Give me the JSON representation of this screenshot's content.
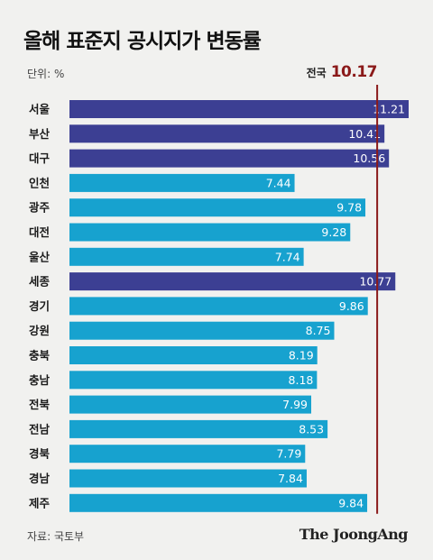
{
  "title": "올해 표준지 공시지가 변동률",
  "unit_label": "단위: %",
  "source": "자료: 국토부",
  "brand": "The JoongAng",
  "colors": {
    "highlight_bar": "#3c3f93",
    "normal_bar": "#17a2cf",
    "reference_line": "#8b1a1a",
    "background": "#f1f1ef"
  },
  "chart_data": {
    "type": "bar",
    "orientation": "horizontal",
    "title": "올해 표준지 공시지가 변동률",
    "unit": "%",
    "categories": [
      "서울",
      "부산",
      "대구",
      "인천",
      "광주",
      "대전",
      "울산",
      "세종",
      "경기",
      "강원",
      "충북",
      "충남",
      "전북",
      "전남",
      "경북",
      "경남",
      "제주"
    ],
    "values": [
      11.21,
      10.41,
      10.56,
      7.44,
      9.78,
      9.28,
      7.74,
      10.77,
      9.86,
      8.75,
      8.19,
      8.18,
      7.99,
      8.53,
      7.79,
      7.84,
      9.84
    ],
    "value_labels": [
      "11.21",
      "10.41",
      "10.56",
      "7.44",
      "9.78",
      "9.28",
      "7.74",
      "10.77",
      "9.86",
      "8.75",
      "8.19",
      "8.18",
      "7.99",
      "8.53",
      "7.79",
      "7.84",
      "9.84"
    ],
    "highlighted": [
      "서울",
      "부산",
      "대구",
      "세종"
    ],
    "reference": {
      "label": "전국",
      "value": 10.17,
      "value_label": "10.17"
    },
    "xlim": [
      0,
      11.21
    ],
    "grid": false,
    "legend": "none"
  }
}
